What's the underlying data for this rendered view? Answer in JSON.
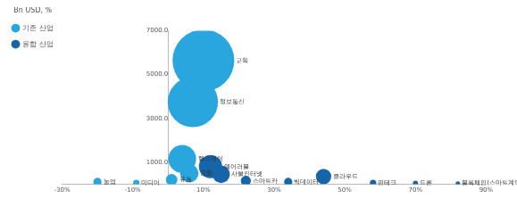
{
  "chart_data": {
    "type": "bubble",
    "legend_title": "Bn USD, %",
    "legend": "top-left",
    "grid": false,
    "xlim": [
      -30,
      90
    ],
    "xticks": [
      {
        "value": -30,
        "label": "-30%"
      },
      {
        "value": -10,
        "label": "-10%"
      },
      {
        "value": 10,
        "label": "10%"
      },
      {
        "value": 30,
        "label": "30%"
      },
      {
        "value": 50,
        "label": "50%"
      },
      {
        "value": 70,
        "label": "70%"
      },
      {
        "value": 90,
        "label": "90%"
      }
    ],
    "ylim": [
      0,
      7000
    ],
    "yticks": [
      {
        "value": 1000,
        "label": "1000.0"
      },
      {
        "value": 3000,
        "label": "3000.0"
      },
      {
        "value": 5000,
        "label": "5000.0"
      },
      {
        "value": 7000,
        "label": "7000.0"
      }
    ],
    "series": [
      {
        "name": "기존 산업",
        "color": "#2aa6df",
        "labels": [
          "교육",
          "정보통신",
          "헬스케어",
          "금융",
          "유통",
          "미디어",
          "농업"
        ],
        "x": [
          10,
          7,
          4,
          6,
          1,
          -9,
          -20
        ],
        "values": [
          5650,
          3750,
          1150,
          500,
          200,
          60,
          100
        ],
        "sizes": [
          5650,
          3750,
          1150,
          500,
          200,
          60,
          100
        ]
      },
      {
        "name": "융합 산업",
        "color": "#1565a8",
        "labels": [
          "웨어러블",
          "사물인터넷",
          "스마트카",
          "빅데이터",
          "클라우드",
          "핀테크",
          "드론",
          "블록체인(스마트계약)"
        ],
        "x": [
          12,
          15,
          22,
          34,
          44,
          58,
          70,
          82
        ],
        "values": [
          800,
          450,
          150,
          100,
          350,
          60,
          40,
          30
        ],
        "sizes": [
          800,
          450,
          150,
          100,
          350,
          60,
          40,
          30
        ]
      }
    ]
  }
}
